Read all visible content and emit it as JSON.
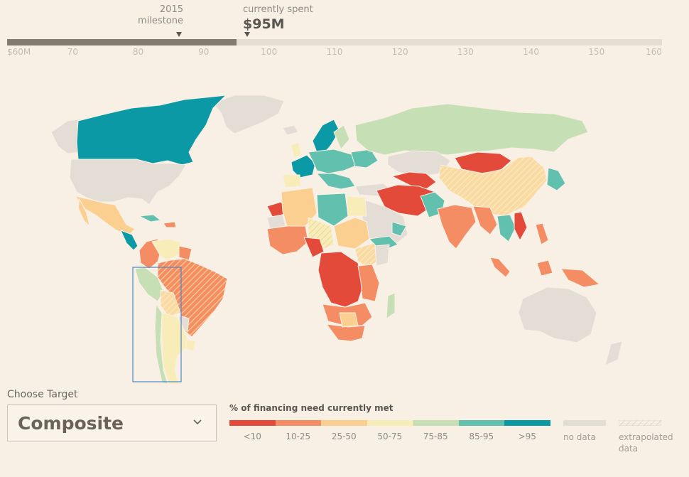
{
  "slider": {
    "milestone_year": "2015",
    "milestone_word": "milestone",
    "current_caption": "currently spent",
    "current_value": "$95M",
    "min_value": 60,
    "max_value": 160,
    "current_amount": 95,
    "milestone_amount": 85,
    "ticks": [
      "$60M",
      "70",
      "80",
      "90",
      "100",
      "110",
      "120",
      "130",
      "140",
      "150",
      "160"
    ]
  },
  "target": {
    "label": "Choose Target",
    "selected": "Composite"
  },
  "legend": {
    "title": "% of financing need currently met",
    "bins": [
      {
        "label": "<10",
        "color": "#e44a3a"
      },
      {
        "label": "10-25",
        "color": "#f48d64"
      },
      {
        "label": "25-50",
        "color": "#fbcf90"
      },
      {
        "label": "50-75",
        "color": "#f8edb8"
      },
      {
        "label": "75-85",
        "color": "#c7dfb4"
      },
      {
        "label": "85-95",
        "color": "#62c0ae"
      },
      {
        "label": ">95",
        "color": "#0b9aa5"
      }
    ],
    "no_data": {
      "label": "no data",
      "color": "#e4ddd5"
    },
    "extrapolated": {
      "line1": "extrapolated",
      "line2": "data"
    }
  },
  "map_colors": {
    "background": "#f9f0e5",
    "nodata": "#e4ddd5",
    "selection_box": "#4a86c8"
  }
}
